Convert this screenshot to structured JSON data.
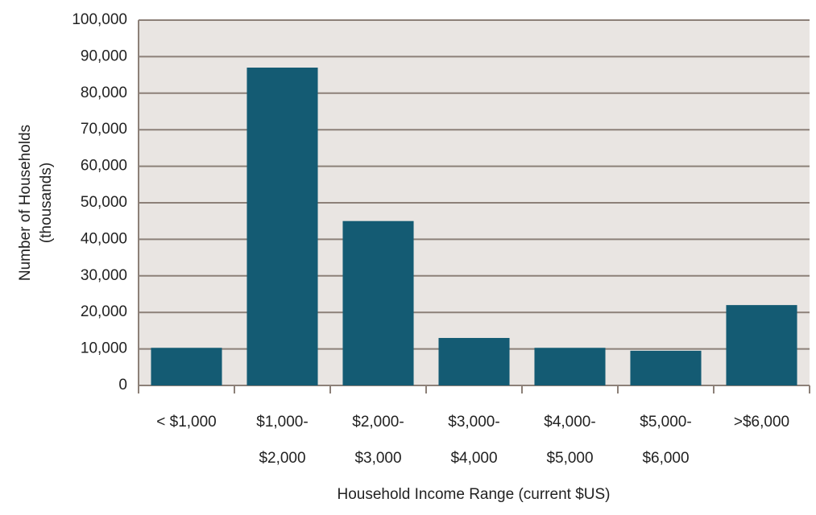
{
  "chart_data": {
    "type": "bar",
    "categories": [
      [
        "< $1,000"
      ],
      [
        "$1,000-",
        "$2,000"
      ],
      [
        "$2,000-",
        "$3,000"
      ],
      [
        "$3,000-",
        "$4,000"
      ],
      [
        "$4,000-",
        "$5,000"
      ],
      [
        "$5,000-",
        "$6,000"
      ],
      [
        ">$6,000"
      ]
    ],
    "values": [
      10300,
      87000,
      45000,
      13000,
      10300,
      9500,
      22000
    ],
    "color": "#145b73",
    "ylim": [
      0,
      100000
    ],
    "yticks": [
      0,
      {
        "value": 10000,
        "label": "10,000"
      },
      {
        "value": 20000,
        "label": "20,000"
      },
      {
        "value": 30000,
        "label": "30,000"
      },
      {
        "value": 40000,
        "label": "40,000"
      },
      {
        "value": 50000,
        "label": "50,000"
      },
      {
        "value": 60000,
        "label": "60,000"
      },
      {
        "value": 70000,
        "label": "70,000"
      },
      {
        "value": 80000,
        "label": "80,000"
      },
      {
        "value": 90000,
        "label": "90,000"
      },
      {
        "value": 100000,
        "label": "100,000"
      }
    ],
    "grid": true,
    "x_label": "Household Income Range (current $US)",
    "y_label": [
      "Number of Households",
      "(thousands)"
    ]
  }
}
